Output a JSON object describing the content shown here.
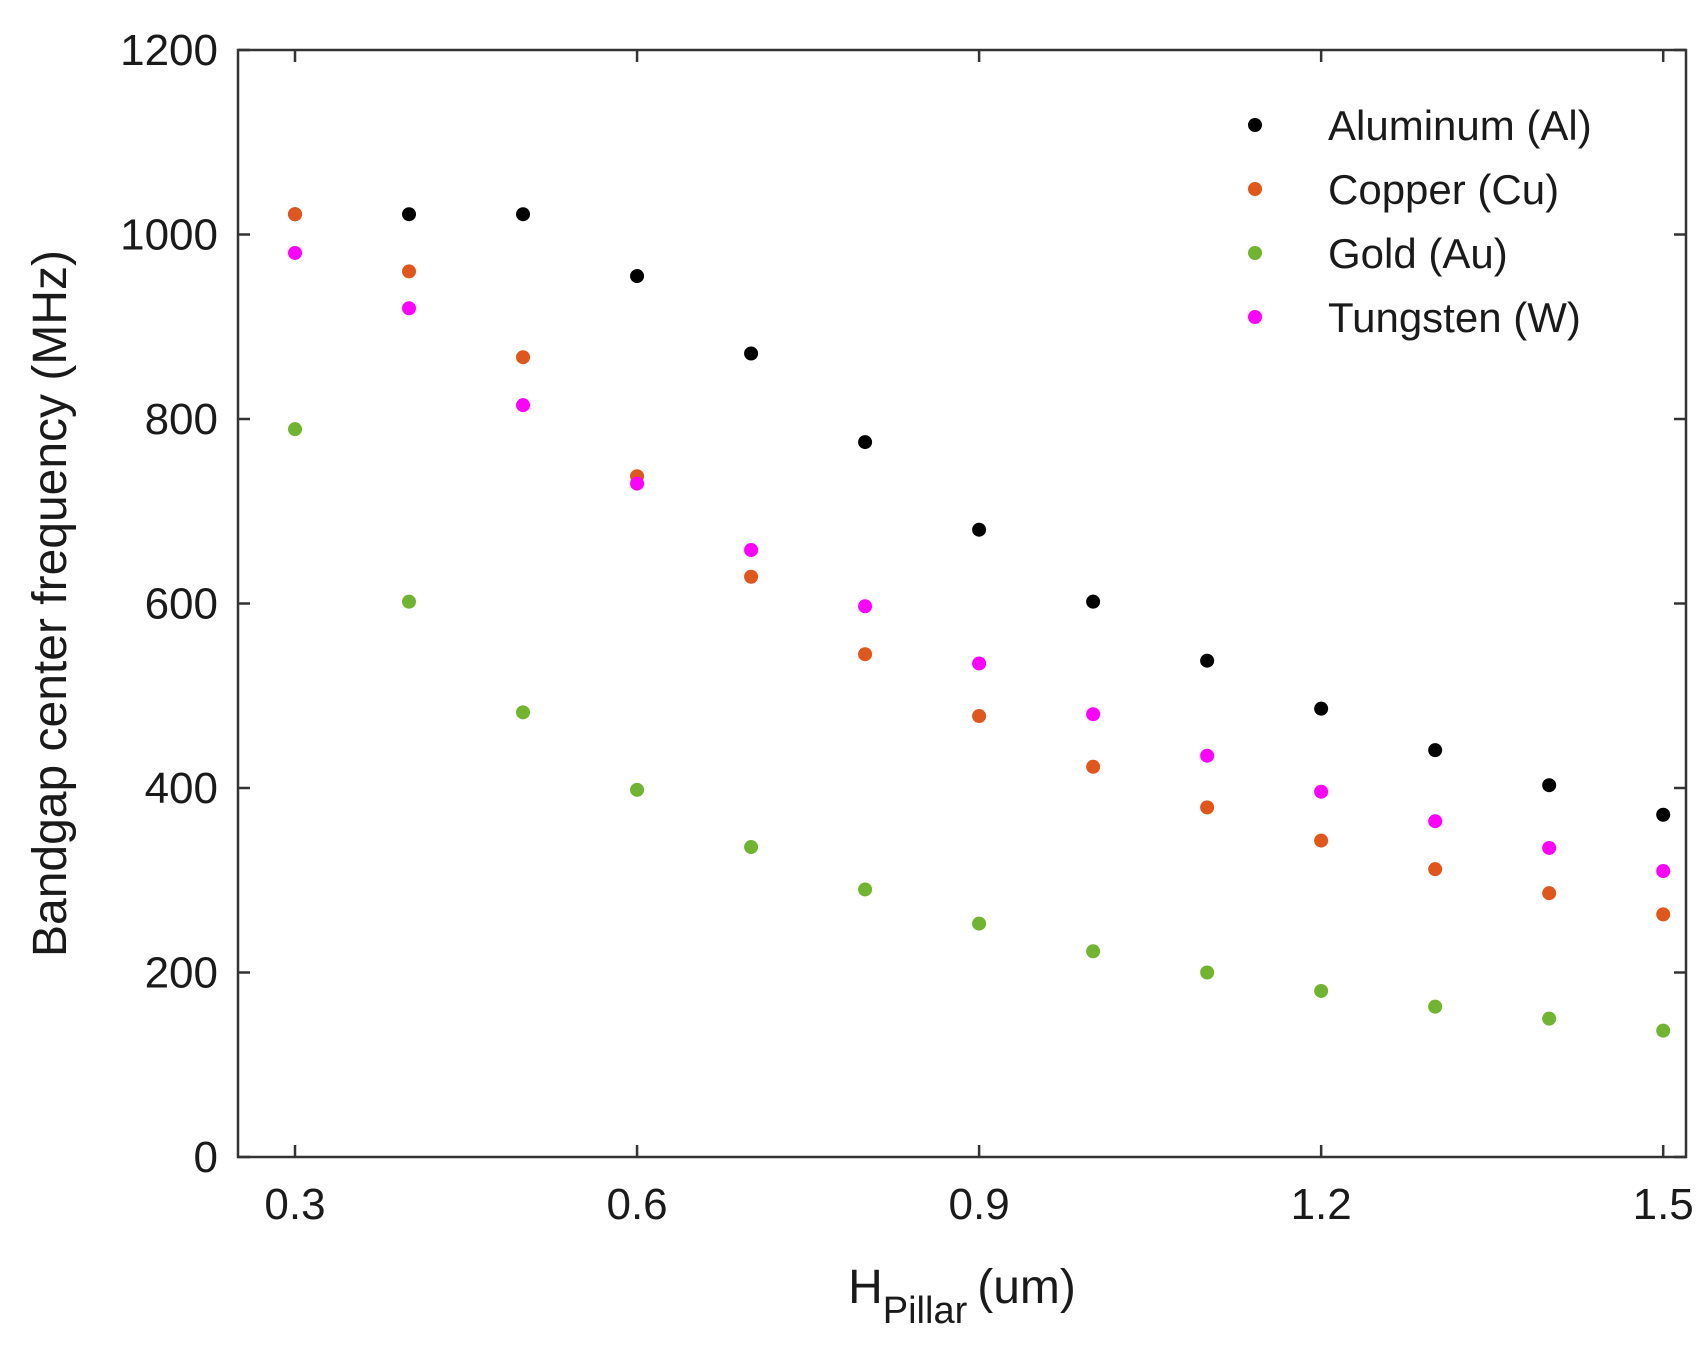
{
  "chart_data": {
    "type": "scatter",
    "title": "",
    "x": [
      0.3,
      0.4,
      0.5,
      0.6,
      0.7,
      0.8,
      0.9,
      1.0,
      1.1,
      1.2,
      1.3,
      1.4,
      1.5
    ],
    "series": [
      {
        "name": "Aluminum (Al)",
        "color": "#000000",
        "values": [
          1022,
          1022,
          1022,
          955,
          871,
          775,
          680,
          602,
          538,
          486,
          441,
          403,
          371
        ]
      },
      {
        "name": "Copper (Cu)",
        "color": "#e0561b",
        "values": [
          1022,
          960,
          867,
          738,
          629,
          545,
          478,
          423,
          379,
          343,
          312,
          286,
          263
        ]
      },
      {
        "name": "Gold (Au)",
        "color": "#71b42f",
        "values": [
          789,
          602,
          482,
          398,
          336,
          290,
          253,
          223,
          200,
          180,
          163,
          150,
          137
        ]
      },
      {
        "name": "Tungsten (W)",
        "color": "#ff00ff",
        "values": [
          980,
          920,
          815,
          730,
          658,
          597,
          535,
          480,
          435,
          396,
          364,
          335,
          310
        ]
      }
    ],
    "xlabel_main": "H",
    "xlabel_sub": "Pillar",
    "xlabel_unit": "(um)",
    "ylabel": "Bandgap center frequency (MHz)",
    "xlim": [
      0.25,
      1.52
    ],
    "ylim": [
      0,
      1200
    ],
    "xticks": [
      0.3,
      0.6,
      0.9,
      1.2,
      1.5
    ],
    "xtick_labels": [
      "0.3",
      "0.6",
      "0.9",
      "1.2",
      "1.5"
    ],
    "yticks": [
      0,
      200,
      400,
      600,
      800,
      1000,
      1200
    ],
    "ytick_labels": [
      "0",
      "200",
      "400",
      "600",
      "800",
      "1000",
      "1200"
    ],
    "grid": false,
    "legend_position": "top-right"
  }
}
